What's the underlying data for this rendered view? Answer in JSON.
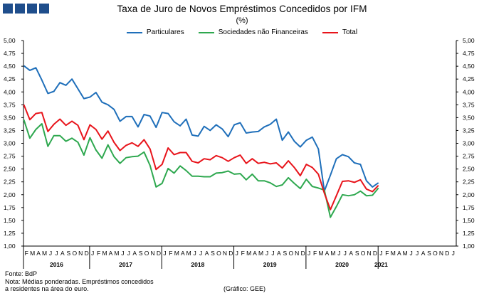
{
  "header": {
    "title": "Taxa de Juro de Novos Empréstimos Concedidos por IFM",
    "subtitle": "(%)"
  },
  "footer": {
    "source": "Fonte: BdP",
    "note_line1": "Nota: Médias ponderadas.  Empréstimos concedidos",
    "note_line2": "a residentes na área do euro.",
    "credit": "(Gráfico: GEE)"
  },
  "chart_data": {
    "type": "line",
    "title": "Taxa de Juro de Novos Empréstimos Concedidos por IFM",
    "subtitle": "(%)",
    "ylim": [
      1.0,
      5.0
    ],
    "yticks": [
      "5,00",
      "4,75",
      "4,50",
      "4,25",
      "4,00",
      "3,75",
      "3,50",
      "3,25",
      "3,00",
      "2,75",
      "2,50",
      "2,25",
      "2,00",
      "1,75",
      "1,50",
      "1,25",
      "1,00"
    ],
    "month_labels": [
      "F",
      "M",
      "A",
      "M",
      "J",
      "J",
      "A",
      "S",
      "O",
      "N",
      "D",
      "J",
      "F",
      "M",
      "A",
      "M",
      "J",
      "J",
      "A",
      "S",
      "O",
      "N",
      "D",
      "J",
      "F",
      "M",
      "A",
      "M",
      "J",
      "J",
      "A",
      "S",
      "O",
      "N",
      "D",
      "J",
      "F",
      "M",
      "A",
      "M",
      "J",
      "J",
      "A",
      "S",
      "O",
      "N",
      "D",
      "J",
      "F",
      "M",
      "A",
      "M",
      "J",
      "J",
      "A",
      "S",
      "O",
      "N",
      "D",
      "J",
      "F",
      "M",
      "A",
      "M",
      "J",
      "J",
      "A",
      "S",
      "O",
      "N",
      "D",
      "J"
    ],
    "year_labels": [
      "2016",
      "2017",
      "2018",
      "2019",
      "2020",
      "2021"
    ],
    "legend_position": "top-center",
    "grid": false,
    "colors": {
      "particulares": "#1f6fba",
      "sociedades": "#2ea84f",
      "total": "#e8141b"
    },
    "series": [
      {
        "name": "Particulares",
        "color": "#1f6fba",
        "values": [
          4.51,
          4.42,
          4.47,
          4.23,
          3.97,
          4.01,
          4.18,
          4.13,
          4.25,
          4.06,
          3.87,
          3.9,
          3.99,
          3.8,
          3.75,
          3.66,
          3.43,
          3.52,
          3.52,
          3.32,
          3.56,
          3.53,
          3.31,
          3.6,
          3.58,
          3.42,
          3.34,
          3.47,
          3.16,
          3.14,
          3.33,
          3.25,
          3.36,
          3.28,
          3.13,
          3.36,
          3.4,
          3.2,
          3.22,
          3.23,
          3.32,
          3.37,
          3.47,
          3.06,
          3.22,
          3.04,
          2.93,
          3.06,
          3.12,
          2.89,
          2.07,
          2.38,
          2.7,
          2.78,
          2.74,
          2.62,
          2.59,
          2.27,
          2.15,
          2.23
        ]
      },
      {
        "name": "Sociedades não Financeiras",
        "color": "#2ea84f",
        "values": [
          3.46,
          3.1,
          3.27,
          3.38,
          2.94,
          3.15,
          3.15,
          3.04,
          3.1,
          3.02,
          2.77,
          3.11,
          2.87,
          2.71,
          2.97,
          2.74,
          2.61,
          2.72,
          2.74,
          2.75,
          2.83,
          2.57,
          2.15,
          2.22,
          2.51,
          2.42,
          2.56,
          2.47,
          2.36,
          2.36,
          2.35,
          2.35,
          2.42,
          2.43,
          2.46,
          2.4,
          2.41,
          2.29,
          2.4,
          2.27,
          2.27,
          2.23,
          2.16,
          2.19,
          2.33,
          2.22,
          2.12,
          2.3,
          2.16,
          2.13,
          2.09,
          1.56,
          1.77,
          2.0,
          1.98,
          2.0,
          2.07,
          1.98,
          1.99,
          2.13
        ]
      },
      {
        "name": "Total",
        "color": "#e8141b",
        "values": [
          3.75,
          3.46,
          3.58,
          3.6,
          3.23,
          3.37,
          3.47,
          3.35,
          3.43,
          3.35,
          3.07,
          3.36,
          3.27,
          3.08,
          3.24,
          3.02,
          2.86,
          2.96,
          3.01,
          2.94,
          3.07,
          2.89,
          2.49,
          2.59,
          2.91,
          2.78,
          2.82,
          2.82,
          2.65,
          2.62,
          2.7,
          2.68,
          2.76,
          2.72,
          2.65,
          2.72,
          2.77,
          2.61,
          2.7,
          2.61,
          2.63,
          2.6,
          2.62,
          2.52,
          2.66,
          2.53,
          2.37,
          2.59,
          2.53,
          2.4,
          2.03,
          1.71,
          1.98,
          2.26,
          2.27,
          2.24,
          2.29,
          2.11,
          2.06,
          2.18
        ]
      }
    ]
  }
}
